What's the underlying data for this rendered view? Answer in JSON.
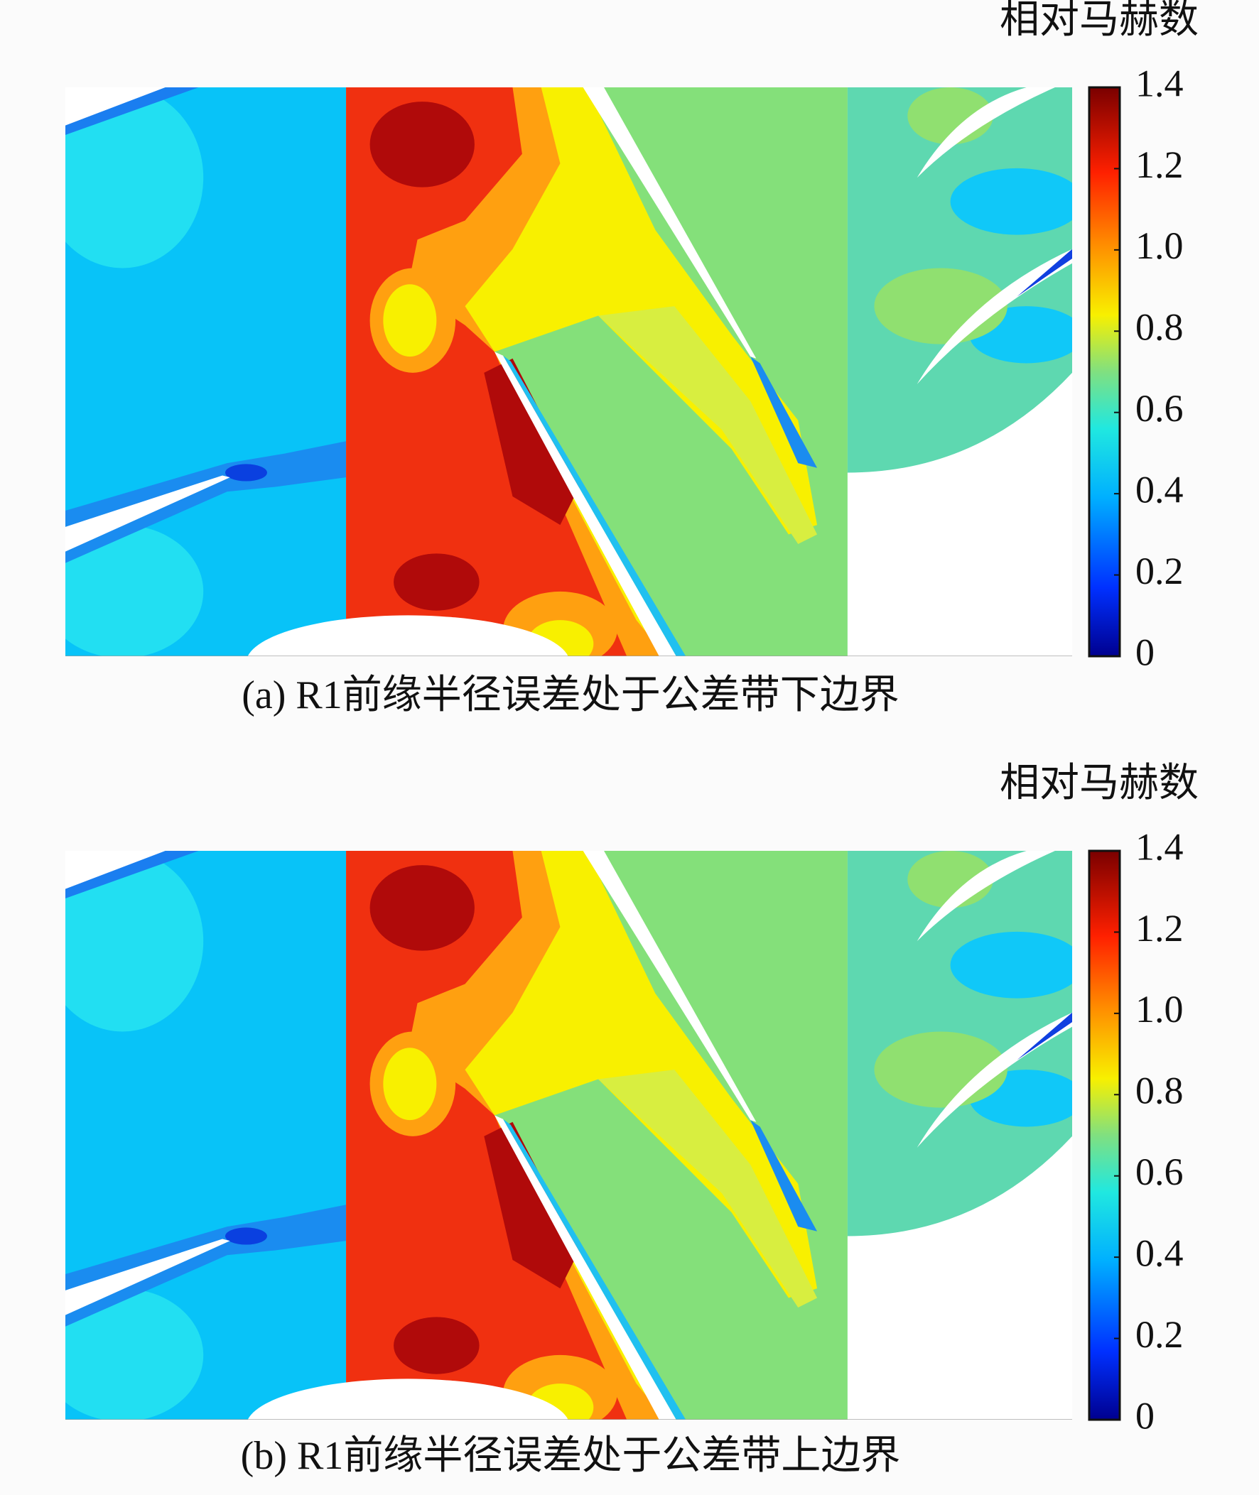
{
  "figures": [
    {
      "colorbar": {
        "title": "相对马赫数",
        "lim": [
          0,
          1.4
        ],
        "ticks": [
          0,
          0.2,
          0.4,
          0.6,
          0.8,
          {
            "value": 1,
            "label": "1.0"
          },
          1.2,
          1.4
        ]
      },
      "caption": "(a) R1前缘半径误差处于公差带下边界"
    },
    {
      "colorbar": {
        "title": "相对马赫数",
        "lim": [
          0,
          1.4
        ],
        "ticks": [
          0,
          0.2,
          0.4,
          0.6,
          0.8,
          {
            "value": 1,
            "label": "1.0"
          },
          1.2,
          1.4
        ]
      },
      "caption": "(b) R1前缘半径误差处于公差带上边界"
    }
  ]
}
